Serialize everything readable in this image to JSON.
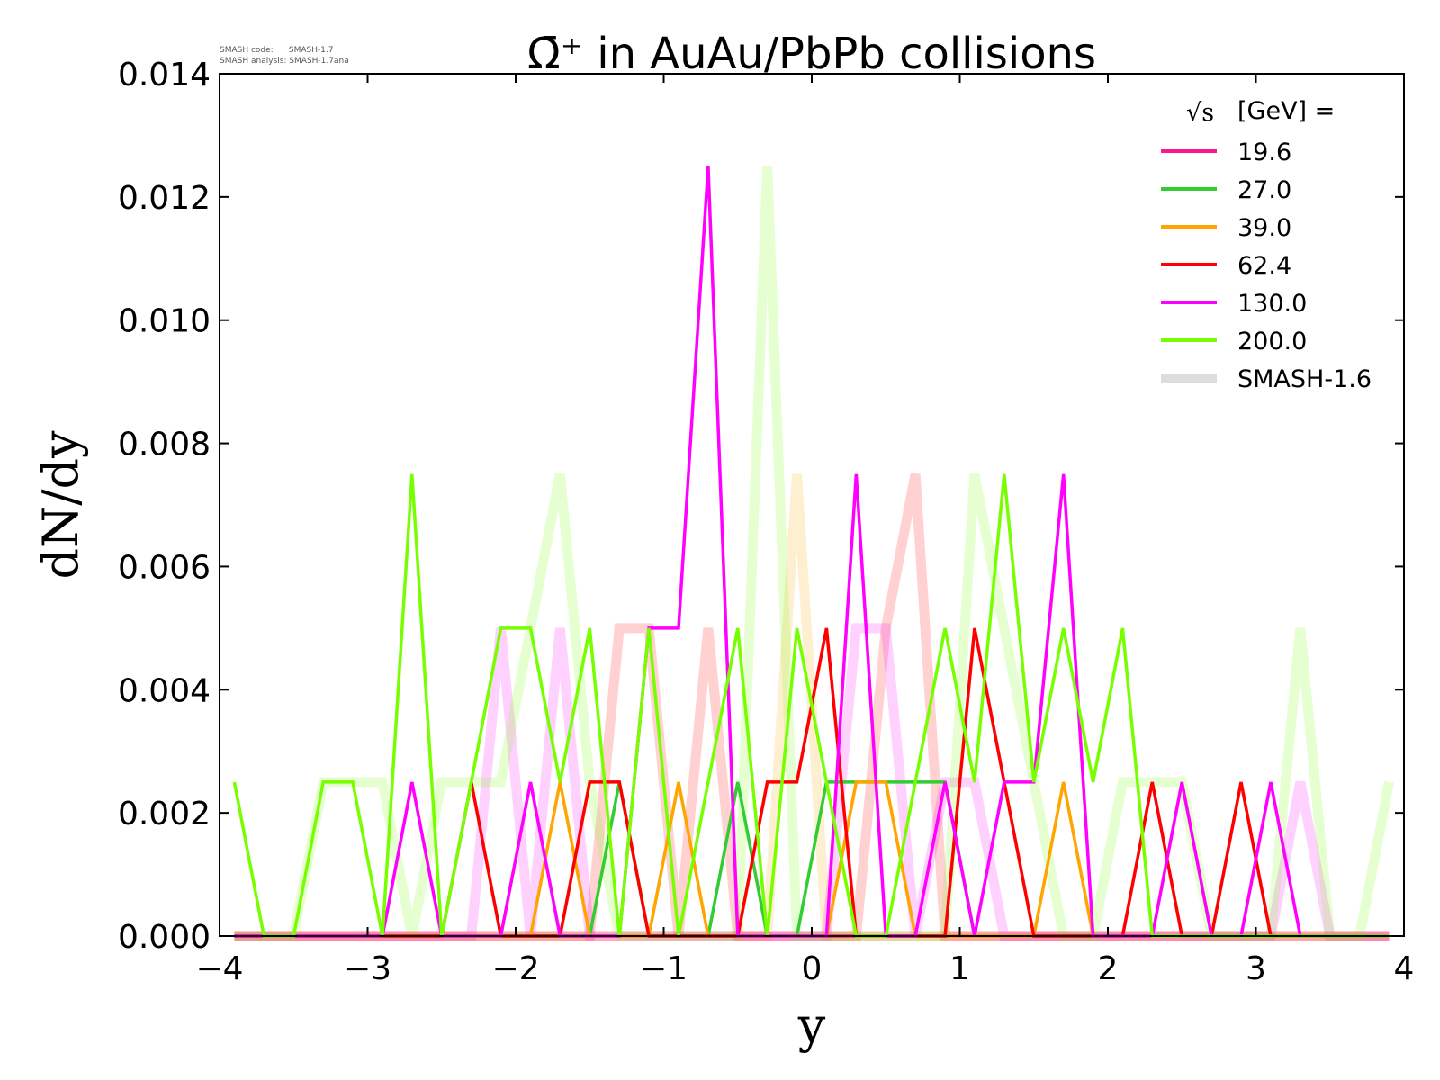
{
  "chart_data": {
    "type": "line",
    "title": "Ω̄⁺ in AuAu/PbPb collisions",
    "xlabel": "y",
    "ylabel": "dN/dy",
    "xlim": [
      -4,
      4
    ],
    "ylim": [
      0,
      0.014
    ],
    "xticks": [
      "−4",
      "−3",
      "−2",
      "−1",
      "0",
      "1",
      "2",
      "3",
      "4"
    ],
    "yticks": [
      "0.000",
      "0.002",
      "0.004",
      "0.006",
      "0.008",
      "0.010",
      "0.012",
      "0.014"
    ],
    "legend": {
      "title_sqrt": "√s",
      "title_rest": "[GeV] =",
      "placement": "top-right",
      "reference_label": "SMASH-1.6",
      "reference_color": "#dddddd"
    },
    "watermark": {
      "line1": "SMASH code:      SMASH-1.7",
      "line2": "SMASH analysis: SMASH-1.7ana"
    },
    "x": [
      -3.9,
      -3.7,
      -3.5,
      -3.3,
      -3.1,
      -2.9,
      -2.7,
      -2.5,
      -2.3,
      -2.1,
      -1.9,
      -1.7,
      -1.5,
      -1.3,
      -1.1,
      -0.9,
      -0.7,
      -0.5,
      -0.3,
      -0.1,
      0.1,
      0.3,
      0.5,
      0.7,
      0.9,
      1.1,
      1.3,
      1.5,
      1.7,
      1.9,
      2.1,
      2.3,
      2.5,
      2.7,
      2.9,
      3.1,
      3.3,
      3.5,
      3.7,
      3.9
    ],
    "series": [
      {
        "name": "19.6",
        "color": "#ff1493",
        "values": [
          0,
          0,
          0,
          0,
          0,
          0,
          0,
          0,
          0,
          0,
          0,
          0,
          0,
          0,
          0,
          0,
          0,
          0,
          0,
          0,
          0,
          0,
          0,
          0,
          0,
          0,
          0,
          0,
          0,
          0,
          0,
          0,
          0,
          0,
          0,
          0,
          0,
          0,
          0,
          0
        ]
      },
      {
        "name": "27.0",
        "color": "#33cc33",
        "values": [
          0,
          0,
          0,
          0,
          0,
          0,
          0,
          0,
          0,
          0,
          0,
          0,
          0,
          0.0025,
          0,
          0,
          0,
          0.0025,
          0,
          0,
          0.0025,
          0.0025,
          0.0025,
          0.0025,
          0.0025,
          0,
          0,
          0,
          0,
          0,
          0,
          0,
          0,
          0,
          0,
          0,
          0,
          0,
          0,
          0
        ]
      },
      {
        "name": "39.0",
        "color": "#ffa500",
        "values": [
          0,
          0,
          0,
          0,
          0,
          0,
          0,
          0,
          0,
          0,
          0,
          0.0025,
          0,
          0,
          0,
          0.0025,
          0,
          0,
          0,
          0,
          0,
          0.0025,
          0.0025,
          0,
          0,
          0,
          0,
          0,
          0.0025,
          0,
          0,
          0,
          0,
          0,
          0,
          0,
          0,
          0,
          0,
          0
        ]
      },
      {
        "name": "62.4",
        "color": "#ff0000",
        "values": [
          0,
          0,
          0,
          0,
          0,
          0,
          0,
          0,
          0.0025,
          0,
          0,
          0,
          0.0025,
          0.0025,
          0,
          0,
          0,
          0,
          0.0025,
          0.0025,
          0.005,
          0,
          0,
          0,
          0,
          0.005,
          0.0025,
          0,
          0,
          0,
          0,
          0.0025,
          0,
          0,
          0.0025,
          0,
          0,
          0,
          0,
          0
        ]
      },
      {
        "name": "130.0",
        "color": "#ff00ff",
        "values": [
          0,
          0,
          0,
          0,
          0,
          0,
          0.0025,
          0,
          0,
          0,
          0.0025,
          0,
          0,
          0,
          0.005,
          0.005,
          0.0125,
          0,
          0,
          0,
          0,
          0.0075,
          0,
          0,
          0.0025,
          0,
          0.0025,
          0.0025,
          0.0075,
          0,
          0,
          0,
          0.0025,
          0,
          0,
          0.0025,
          0,
          0,
          0,
          0
        ]
      },
      {
        "name": "200.0",
        "color": "#77ff00",
        "values": [
          0.0025,
          0,
          0,
          0.0025,
          0.0025,
          0,
          0.0075,
          0,
          0.0025,
          0.005,
          0.005,
          0.0025,
          0.005,
          0,
          0.005,
          0,
          0.0025,
          0.005,
          0,
          0.005,
          0.0025,
          0,
          0,
          0.0025,
          0.005,
          0.0025,
          0.0075,
          0.0025,
          0.005,
          0.0025,
          0.005,
          0,
          0,
          0,
          0,
          0,
          0,
          0,
          0,
          0
        ]
      }
    ],
    "reference_series": [
      {
        "name": "19.6",
        "color": "#ff1493",
        "values": [
          0,
          0,
          0,
          0,
          0,
          0,
          0,
          0,
          0,
          0,
          0,
          0,
          0,
          0,
          0,
          0,
          0,
          0,
          0,
          0,
          0,
          0,
          0,
          0,
          0,
          0,
          0,
          0,
          0,
          0,
          0,
          0,
          0,
          0,
          0,
          0,
          0,
          0,
          0,
          0
        ]
      },
      {
        "name": "39.0",
        "color": "#ffa500",
        "values": [
          0,
          0,
          0,
          0,
          0,
          0,
          0,
          0,
          0,
          0,
          0,
          0,
          0,
          0,
          0,
          0,
          0,
          0,
          0,
          0.0075,
          0,
          0,
          0,
          0,
          0,
          0,
          0,
          0,
          0,
          0,
          0,
          0,
          0,
          0,
          0,
          0,
          0,
          0,
          0,
          0
        ]
      },
      {
        "name": "62.4",
        "color": "#ff0000",
        "values": [
          0,
          0,
          0,
          0,
          0,
          0,
          0,
          0,
          0,
          0,
          0,
          0,
          0,
          0.005,
          0.005,
          0,
          0.005,
          0,
          0,
          0,
          0,
          0,
          0.005,
          0.0075,
          0,
          0,
          0,
          0,
          0,
          0,
          0,
          0,
          0,
          0,
          0,
          0,
          0,
          0,
          0,
          0
        ]
      },
      {
        "name": "130.0",
        "color": "#ff00ff",
        "values": [
          0,
          0,
          0,
          0,
          0,
          0,
          0,
          0,
          0,
          0.005,
          0,
          0.005,
          0,
          0,
          0,
          0,
          0,
          0,
          0,
          0,
          0,
          0.005,
          0.005,
          0,
          0.0025,
          0.0025,
          0,
          0,
          0,
          0,
          0,
          0,
          0,
          0,
          0,
          0,
          0.0025,
          0,
          0,
          0
        ]
      },
      {
        "name": "200.0",
        "color": "#77ff00",
        "values": [
          0,
          0,
          0,
          0.0025,
          0.0025,
          0.0025,
          0,
          0.0025,
          0.0025,
          0.0025,
          0.005,
          0.0075,
          0.0025,
          0,
          0,
          0,
          0,
          0,
          0.0125,
          0,
          0,
          0,
          0,
          0,
          0,
          0.0075,
          0.005,
          0.0025,
          0,
          0,
          0.0025,
          0.0025,
          0.0025,
          0,
          0,
          0,
          0.005,
          0,
          0,
          0.0025
        ]
      }
    ]
  }
}
